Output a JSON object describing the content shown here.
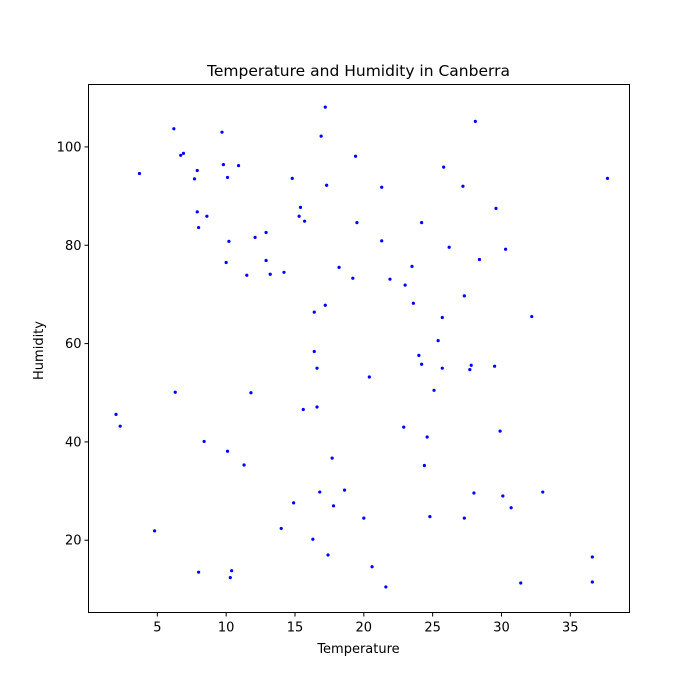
{
  "chart_data": {
    "type": "scatter",
    "title": "Temperature and Humidity in Canberra",
    "xlabel": "Temperature",
    "ylabel": "Humidity",
    "xlim": [
      0,
      39.3
    ],
    "ylim": [
      5.3,
      112.7
    ],
    "xticks": [
      5,
      10,
      15,
      20,
      25,
      30,
      35
    ],
    "yticks": [
      20,
      40,
      60,
      80,
      100
    ],
    "grid": false,
    "marker_color": "#0000ff",
    "series": [
      {
        "points": [
          [
            2.0,
            45.6
          ],
          [
            2.3,
            43.2
          ],
          [
            3.7,
            94.6
          ],
          [
            4.8,
            21.9
          ],
          [
            6.2,
            103.7
          ],
          [
            6.3,
            50.1
          ],
          [
            6.7,
            98.3
          ],
          [
            6.9,
            98.7
          ],
          [
            7.7,
            93.5
          ],
          [
            7.9,
            95.2
          ],
          [
            7.9,
            86.8
          ],
          [
            8.0,
            83.6
          ],
          [
            8.0,
            13.5
          ],
          [
            8.4,
            40.1
          ],
          [
            8.6,
            85.9
          ],
          [
            9.7,
            103.0
          ],
          [
            9.8,
            96.4
          ],
          [
            10.0,
            76.5
          ],
          [
            10.1,
            93.8
          ],
          [
            10.1,
            38.1
          ],
          [
            10.2,
            80.8
          ],
          [
            10.3,
            12.4
          ],
          [
            10.4,
            13.8
          ],
          [
            10.9,
            96.2
          ],
          [
            11.3,
            35.3
          ],
          [
            11.5,
            73.9
          ],
          [
            11.8,
            50.0
          ],
          [
            12.1,
            81.6
          ],
          [
            12.9,
            82.6
          ],
          [
            12.9,
            76.9
          ],
          [
            13.2,
            74.1
          ],
          [
            14.0,
            22.4
          ],
          [
            14.2,
            74.5
          ],
          [
            14.8,
            93.6
          ],
          [
            14.9,
            27.6
          ],
          [
            15.3,
            85.9
          ],
          [
            15.4,
            87.7
          ],
          [
            15.6,
            46.6
          ],
          [
            15.7,
            84.9
          ],
          [
            16.3,
            20.2
          ],
          [
            16.4,
            66.4
          ],
          [
            16.4,
            58.4
          ],
          [
            16.6,
            55.0
          ],
          [
            16.6,
            47.1
          ],
          [
            16.8,
            29.8
          ],
          [
            16.9,
            102.2
          ],
          [
            17.2,
            108.1
          ],
          [
            17.2,
            67.8
          ],
          [
            17.3,
            92.2
          ],
          [
            17.4,
            17.0
          ],
          [
            17.7,
            36.7
          ],
          [
            17.8,
            27.0
          ],
          [
            18.2,
            75.5
          ],
          [
            18.6,
            30.2
          ],
          [
            19.2,
            73.3
          ],
          [
            19.4,
            98.1
          ],
          [
            19.5,
            84.6
          ],
          [
            20.0,
            24.5
          ],
          [
            20.4,
            53.2
          ],
          [
            20.6,
            14.6
          ],
          [
            21.3,
            91.8
          ],
          [
            21.3,
            80.9
          ],
          [
            21.6,
            10.5
          ],
          [
            21.9,
            73.1
          ],
          [
            22.9,
            43.0
          ],
          [
            23.0,
            71.9
          ],
          [
            23.5,
            75.7
          ],
          [
            23.6,
            68.2
          ],
          [
            24.0,
            57.6
          ],
          [
            24.2,
            55.8
          ],
          [
            24.2,
            84.6
          ],
          [
            24.4,
            35.2
          ],
          [
            24.6,
            41.0
          ],
          [
            24.8,
            24.8
          ],
          [
            25.1,
            50.5
          ],
          [
            25.4,
            60.6
          ],
          [
            25.7,
            65.3
          ],
          [
            25.7,
            55.0
          ],
          [
            25.8,
            95.9
          ],
          [
            26.2,
            79.6
          ],
          [
            27.2,
            92.0
          ],
          [
            27.3,
            69.7
          ],
          [
            27.3,
            24.5
          ],
          [
            27.7,
            54.7
          ],
          [
            27.8,
            55.6
          ],
          [
            28.0,
            29.6
          ],
          [
            28.1,
            105.2
          ],
          [
            28.4,
            77.1
          ],
          [
            29.5,
            55.4
          ],
          [
            29.6,
            87.5
          ],
          [
            29.9,
            42.2
          ],
          [
            30.1,
            29.0
          ],
          [
            30.3,
            79.2
          ],
          [
            30.7,
            26.6
          ],
          [
            33.0,
            29.8
          ],
          [
            31.4,
            11.3
          ],
          [
            32.2,
            65.5
          ],
          [
            36.6,
            16.6
          ],
          [
            36.6,
            11.5
          ],
          [
            37.7,
            93.6
          ]
        ]
      }
    ]
  }
}
